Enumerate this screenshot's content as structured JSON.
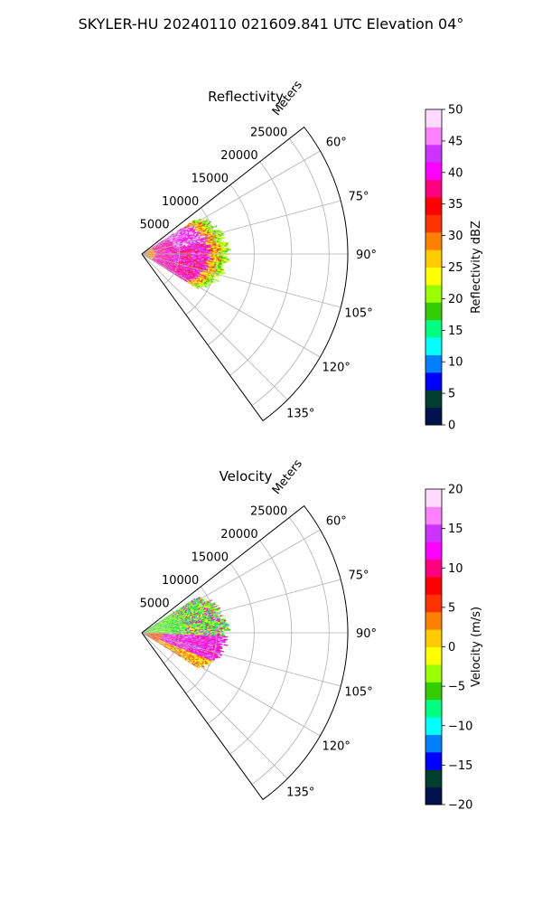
{
  "figure": {
    "title": "SKYLER-HU  20240110  021609.841 UTC Elevation 04°"
  },
  "chart_data": [
    {
      "type": "heatmap",
      "projection": "polar sector (PPI)",
      "title": "Reflectivity",
      "radial_label": "Meters",
      "radial_ticks": [
        "5000",
        "10000",
        "15000",
        "20000",
        "25000"
      ],
      "radial_range": [
        0,
        27500
      ],
      "azimuth_ticks": [
        "60°",
        "75°",
        "90°",
        "105°",
        "120°",
        "135°"
      ],
      "azimuth_range": [
        52,
        144
      ],
      "grid": true,
      "data_extent": {
        "azimuth_range": [
          57,
          122
        ],
        "max_range_m": 11500,
        "description": "sector echoes strongest (35-45 dBZ) from ~3000 to 9000 m, weaker (15-25 dBZ) at outer edge"
      },
      "colorbar": {
        "label": "Reflectivity dBZ",
        "range": [
          0,
          50
        ],
        "ticks": [
          "0",
          "5",
          "10",
          "15",
          "20",
          "25",
          "30",
          "35",
          "40",
          "45",
          "50"
        ],
        "colors": [
          "#00134d",
          "#003f2e",
          "#0000ff",
          "#0080ff",
          "#00ffff",
          "#00ff80",
          "#33cc00",
          "#99ff00",
          "#ffff00",
          "#ffcc00",
          "#ff8000",
          "#ff3300",
          "#ff0000",
          "#ff0080",
          "#ff00ff",
          "#cc33ff",
          "#ff80ff",
          "#ffd9ff"
        ]
      }
    },
    {
      "type": "heatmap",
      "projection": "polar sector (PPI)",
      "title": "Velocity",
      "radial_label": "Meters",
      "radial_ticks": [
        "5000",
        "10000",
        "15000",
        "20000",
        "25000"
      ],
      "radial_range": [
        0,
        27500
      ],
      "azimuth_ticks": [
        "60°",
        "75°",
        "90°",
        "105°",
        "120°",
        "135°"
      ],
      "azimuth_range": [
        52,
        144
      ],
      "grid": true,
      "data_extent": {
        "azimuth_range": [
          57,
          122
        ],
        "max_range_m": 11500,
        "description": "negative velocities (green/cyan) north of ~95°, positive velocities (red/magenta) south, yellow/orange near 110-120°"
      },
      "colorbar": {
        "label": "Velocity (m/s)",
        "range": [
          -20,
          20
        ],
        "ticks": [
          "−20",
          "−15",
          "−10",
          "−5",
          "0",
          "5",
          "10",
          "15",
          "20"
        ],
        "colors": [
          "#00134d",
          "#003f2e",
          "#0000ff",
          "#0080ff",
          "#00ffff",
          "#00ff80",
          "#33cc00",
          "#99ff00",
          "#ffff00",
          "#ffcc00",
          "#ff8000",
          "#ff3300",
          "#ff0000",
          "#ff0080",
          "#ff00ff",
          "#cc33ff",
          "#ff80ff",
          "#ffd9ff"
        ]
      }
    }
  ]
}
